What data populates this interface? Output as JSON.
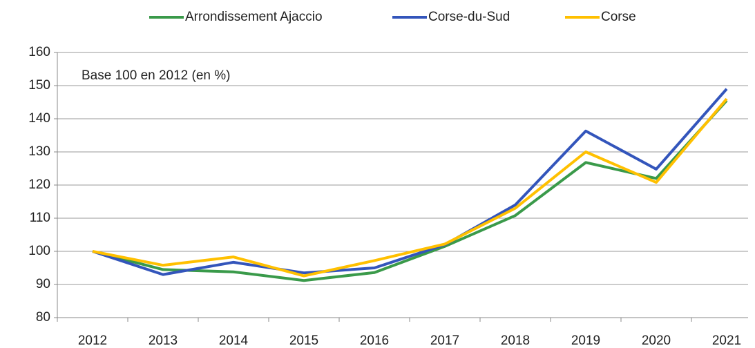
{
  "chart_data": {
    "type": "line",
    "annotation": "Base 100 en 2012 (en %)",
    "categories": [
      "2012",
      "2013",
      "2014",
      "2015",
      "2016",
      "2017",
      "2018",
      "2019",
      "2020",
      "2021"
    ],
    "series": [
      {
        "name": "Arrondissement Ajaccio",
        "color": "#3a9a4a",
        "values": [
          100,
          94.5,
          93.8,
          91.2,
          93.6,
          101.5,
          110.8,
          126.8,
          122,
          145.5
        ]
      },
      {
        "name": "Corse-du-Sud",
        "color": "#3355bb",
        "values": [
          100,
          93,
          96.7,
          93.5,
          95,
          102,
          114,
          136.3,
          124.8,
          149
        ]
      },
      {
        "name": "Corse",
        "color": "#ffc000",
        "values": [
          100,
          95.8,
          98.3,
          92.6,
          97.2,
          102.2,
          113,
          130,
          120.8,
          146
        ]
      }
    ],
    "ylim": [
      80,
      160
    ],
    "yticks": [
      80,
      90,
      100,
      110,
      120,
      130,
      140,
      150,
      160
    ],
    "grid": true,
    "legend": "top"
  }
}
